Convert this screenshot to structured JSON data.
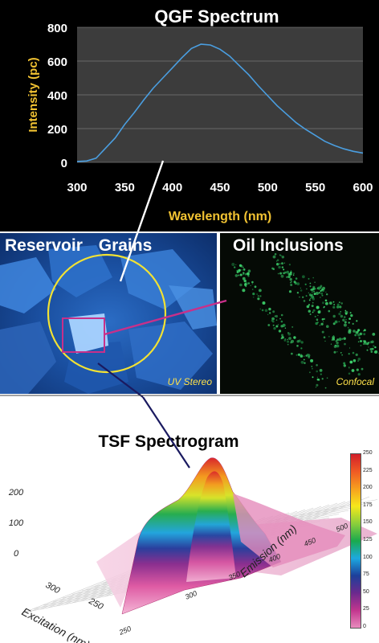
{
  "qgf": {
    "title": "QGF Spectrum",
    "ylabel": "Intensity (pc)",
    "xlabel": "Wavelength (nm)"
  },
  "grains": {
    "title_left": "Reservoir",
    "title_right": "Grains",
    "caption": "UV Stereo"
  },
  "inclusions": {
    "title": "Oil Inclusions",
    "caption": "Confocal"
  },
  "tsf": {
    "title": "TSF Spectrogram",
    "z_ticks": [
      "200",
      "100",
      "0"
    ],
    "excitation_ticks": [
      "300",
      "250"
    ],
    "emission_ticks": [
      "250",
      "300",
      "350",
      "400",
      "450",
      "500"
    ],
    "excitation_label": "Excitation (nm)",
    "emission_label": "Emission (nm)",
    "colorbar_ticks": [
      "250",
      "225",
      "200",
      "175",
      "150",
      "125",
      "100",
      "75",
      "50",
      "25",
      "0"
    ],
    "colorbar_colors": [
      "#d21f2a",
      "#ef5a24",
      "#f7a01e",
      "#f6e81b",
      "#8ccf3b",
      "#1aa94d",
      "#1da9e0",
      "#1d3f9a",
      "#6b2a8e",
      "#c2368e",
      "#e88cbd"
    ]
  },
  "chart_data": {
    "type": "line",
    "title": "QGF Spectrum",
    "xlabel": "Wavelength (nm)",
    "ylabel": "Intensity (pc)",
    "xlim": [
      300,
      600
    ],
    "ylim": [
      0,
      800
    ],
    "xticks": [
      300,
      350,
      400,
      450,
      500,
      550,
      600
    ],
    "yticks": [
      0,
      200,
      400,
      600,
      800
    ],
    "grid": true,
    "series": [
      {
        "color": "#4a9ee0",
        "x": [
          300,
          310,
          320,
          330,
          340,
          350,
          360,
          370,
          380,
          390,
          400,
          410,
          420,
          430,
          440,
          450,
          460,
          470,
          480,
          490,
          500,
          510,
          520,
          530,
          540,
          550,
          560,
          570,
          580,
          590,
          600
        ],
        "y": [
          5,
          8,
          25,
          85,
          145,
          225,
          295,
          370,
          440,
          500,
          560,
          620,
          675,
          700,
          695,
          670,
          630,
          575,
          520,
          455,
          395,
          335,
          285,
          235,
          195,
          160,
          125,
          100,
          80,
          65,
          55
        ]
      }
    ]
  }
}
